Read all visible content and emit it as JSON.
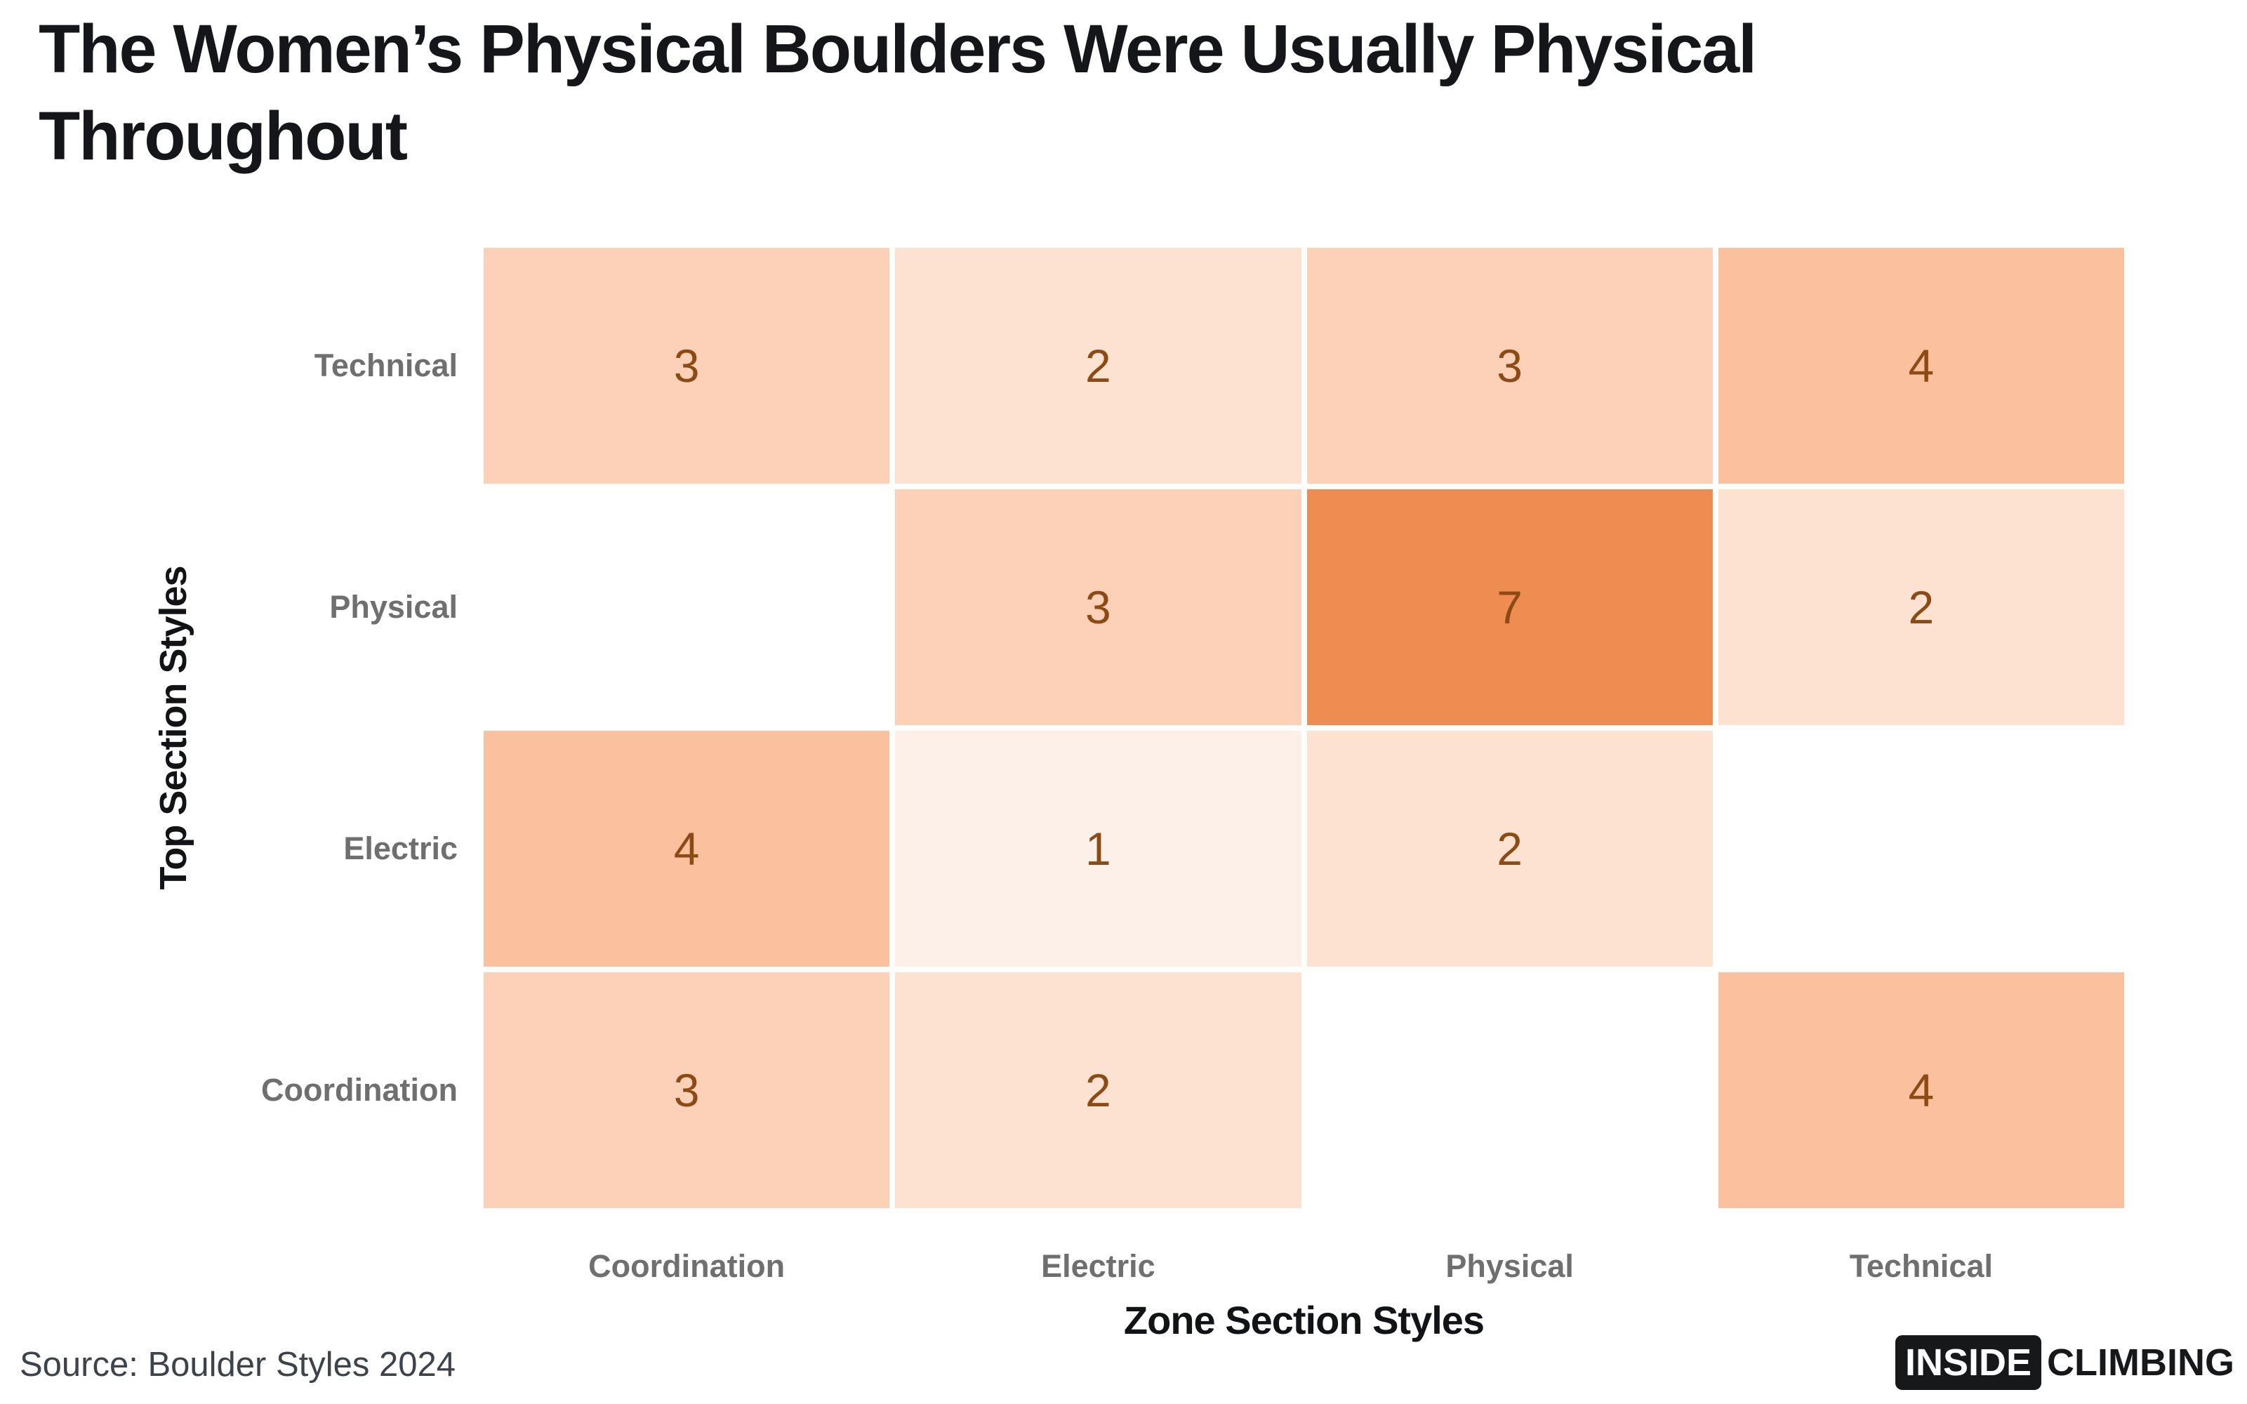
{
  "title": "The Women’s Physical Boulders Were Usually Physical Throughout",
  "source": "Source: Boulder Styles 2024",
  "logo": {
    "boxed": "INSIDE",
    "plain": "CLIMBING"
  },
  "chart_data": {
    "type": "heatmap",
    "title": "The Women’s Physical Boulders Were Usually Physical Throughout",
    "xlabel": "Zone Section Styles",
    "ylabel": "Top Section Styles",
    "x_categories": [
      "Coordination",
      "Electric",
      "Physical",
      "Technical"
    ],
    "y_categories": [
      "Technical",
      "Physical",
      "Electric",
      "Coordination"
    ],
    "values": [
      [
        3,
        2,
        3,
        4
      ],
      [
        null,
        3,
        7,
        2
      ],
      [
        4,
        1,
        2,
        null
      ],
      [
        3,
        2,
        null,
        4
      ]
    ],
    "value_colors": {
      "1": "#fcf0e8",
      "2": "#fde2d2",
      "3": "#fdd0b8",
      "4": "#fbc09d",
      "7": "#ef8c51"
    },
    "empty_color": "#ffffff",
    "value_text_color": "#8c4a15",
    "legend": false,
    "grid": false
  },
  "colors": {
    "title": "#15161a",
    "tick_labels": "#6f6f6f",
    "axis_titles": "#121316",
    "source_text": "#3d434b",
    "logo_bg": "#17181a"
  }
}
